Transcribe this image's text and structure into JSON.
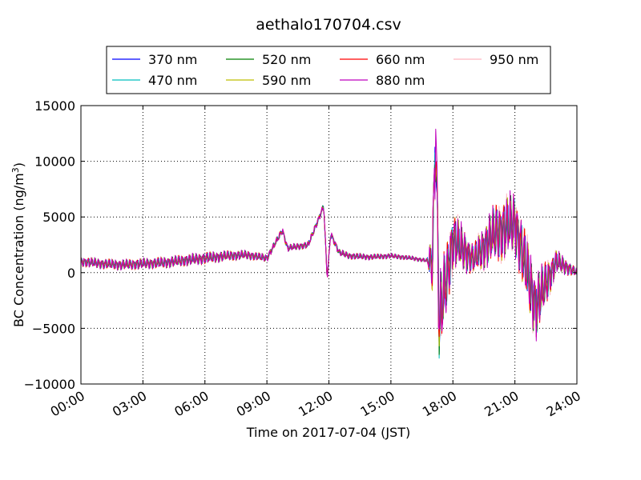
{
  "chart_data": {
    "type": "line",
    "title": "aethalo170704.csv",
    "xlabel": "Time on 2017-07-04 (JST)",
    "ylabel": "BC Concentration (ng/m",
    "ylabel_superscript": "3",
    "ylabel_suffix": ")",
    "xlim": [
      "00:00",
      "24:00"
    ],
    "ylim": [
      -10000,
      15000
    ],
    "x_ticks": [
      "00:00",
      "03:00",
      "06:00",
      "09:00",
      "12:00",
      "15:00",
      "18:00",
      "21:00",
      "24:00"
    ],
    "y_ticks": [
      "15000",
      "10000",
      "5000",
      "0",
      "−5000",
      "−10000"
    ],
    "grid": true,
    "legend_position": "above plot",
    "series": [
      {
        "name": "370 nm",
        "color": "#0000ff",
        "values": []
      },
      {
        "name": "470 nm",
        "color": "#00bfbf",
        "values": []
      },
      {
        "name": "520 nm",
        "color": "#008000",
        "values": []
      },
      {
        "name": "590 nm",
        "color": "#bfbf00",
        "values": []
      },
      {
        "name": "660 nm",
        "color": "#ff0000",
        "values": []
      },
      {
        "name": "880 nm",
        "color": "#bf00bf",
        "values": []
      },
      {
        "name": "950 nm",
        "color": "#ffb6c1",
        "values": []
      }
    ],
    "key_points": {
      "x": [
        "00:00",
        "01:00",
        "02:00",
        "03:00",
        "04:00",
        "05:00",
        "06:00",
        "07:00",
        "08:00",
        "09:00",
        "09:45",
        "10:00",
        "11:00",
        "11:45",
        "11:55",
        "12:05",
        "12:30",
        "13:00",
        "14:00",
        "15:00",
        "16:00",
        "17:00",
        "17:10",
        "17:20",
        "18:00",
        "19:00",
        "20:00",
        "21:00",
        "22:00",
        "23:00",
        "24:00"
      ],
      "y": [
        1000,
        800,
        700,
        800,
        900,
        1100,
        1300,
        1500,
        1600,
        1300,
        3800,
        2200,
        2500,
        6000,
        -600,
        3500,
        1800,
        1500,
        1400,
        1500,
        1300,
        1000,
        13500,
        -4500,
        3000,
        1200,
        3500,
        4500,
        -3000,
        1000,
        0
      ]
    },
    "amplitude": {
      "x": [
        "00:00",
        "06:00",
        "09:30",
        "12:30",
        "16:45",
        "17:10",
        "18:00",
        "19:00",
        "20:00",
        "22:00",
        "23:00",
        "24:00"
      ],
      "y": [
        500,
        600,
        350,
        350,
        200,
        5000,
        3000,
        1500,
        3000,
        3500,
        1200,
        400
      ]
    }
  }
}
